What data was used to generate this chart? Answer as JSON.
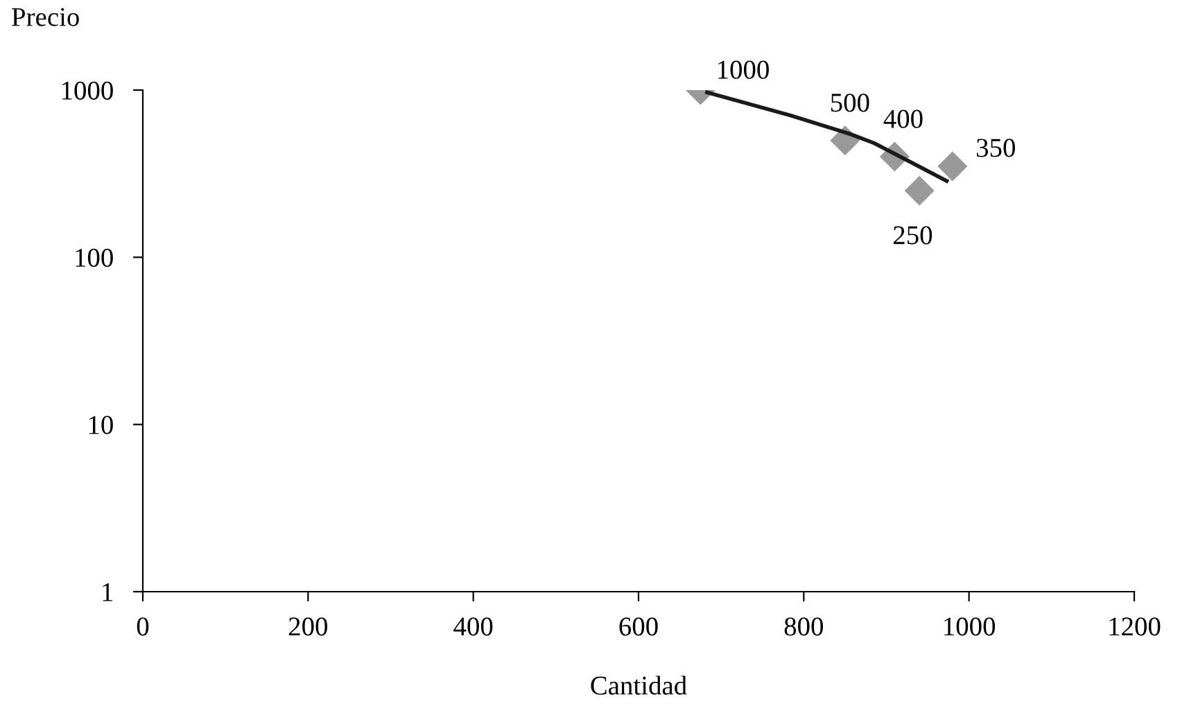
{
  "chart_data": {
    "type": "scatter",
    "xlabel": "Cantidad",
    "ylabel": "Precio",
    "log": "y",
    "xlim": [
      0,
      1200
    ],
    "xticks": [
      0,
      200,
      400,
      600,
      800,
      1000,
      1200
    ],
    "ylim": [
      1,
      1000
    ],
    "yticks": [
      1,
      10,
      100,
      1000
    ],
    "grid": false,
    "legend": false,
    "series": [
      {
        "color": "#999999",
        "marker": "diamond",
        "data_labels": true,
        "x": [
          675,
          850,
          910,
          940,
          980
        ],
        "values": [
          1000,
          500,
          400,
          250,
          350
        ]
      },
      {
        "type": "line",
        "color": "#1a1a1a",
        "marker": "none",
        "line_style": "solid",
        "x": [
          683,
          784,
          856,
          885,
          923,
          973
        ],
        "values": [
          968,
          705,
          546,
          482,
          385,
          286
        ]
      }
    ]
  }
}
